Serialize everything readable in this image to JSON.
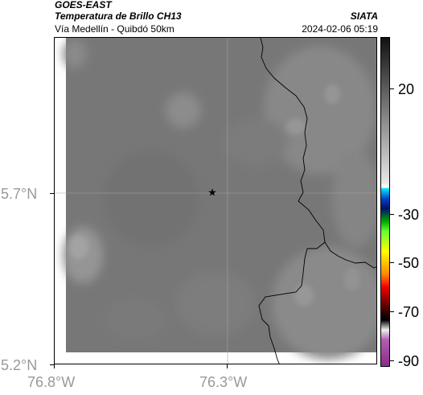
{
  "header": {
    "satellite": "GOES-EAST",
    "product": "Temperatura de Brillo CH13",
    "route": "Vía Medellín - Quibdó 50km",
    "org": "SIATA",
    "timestamp": "2024-02-06 05:19"
  },
  "axes": {
    "lat_ticks": [
      "5.7°N",
      "5.2°N"
    ],
    "lon_ticks": [
      "76.8°W",
      "76.3°W"
    ]
  },
  "colorbar": {
    "labels": [
      "20",
      "-30",
      "-50",
      "-70",
      "-90"
    ]
  },
  "colors": {
    "background_gray": "#777777",
    "axis_text": "#999999"
  },
  "icons": {
    "marker": "star-marker-icon"
  }
}
